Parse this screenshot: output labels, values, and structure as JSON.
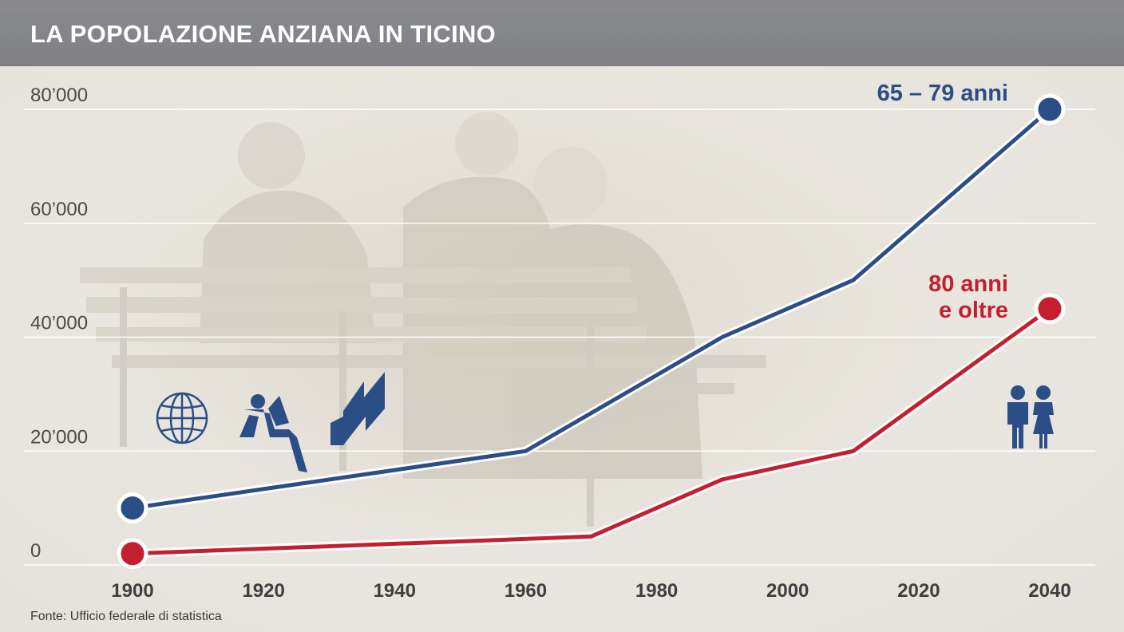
{
  "header": {
    "title": "LA POPOLAZIONE ANZIANA IN TICINO"
  },
  "source": "Fonte: Ufficio federale di statistica",
  "icons": [
    "globe-icon",
    "reading-person-icon",
    "checkmark-icon",
    "elderly-couple-icon"
  ],
  "chart_data": {
    "type": "line",
    "title": "LA POPOLAZIONE ANZIANA IN TICINO",
    "xlabel": "",
    "ylabel": "",
    "xlim": [
      1900,
      2040
    ],
    "ylim": [
      0,
      80000
    ],
    "x_ticks": [
      1900,
      1920,
      1940,
      1960,
      1980,
      2000,
      2020,
      2040
    ],
    "x_tick_labels": [
      "1900",
      "1920",
      "1940",
      "1960",
      "1980",
      "2000",
      "2020",
      "2040"
    ],
    "y_ticks": [
      0,
      20000,
      40000,
      60000,
      80000
    ],
    "y_tick_labels": [
      "0",
      "20’000",
      "40’000",
      "60’000",
      "80’000"
    ],
    "grid": true,
    "series": [
      {
        "name": "65 – 79 anni",
        "color": "#2c4e86",
        "x": [
          1900,
          1960,
          1990,
          2010,
          2040
        ],
        "y": [
          10000,
          20000,
          40000,
          50000,
          80000
        ]
      },
      {
        "name_lines": [
          "80 anni",
          "e oltre"
        ],
        "color": "#c41f2e",
        "x": [
          1900,
          1970,
          1990,
          2010,
          2040
        ],
        "y": [
          2000,
          5000,
          15000,
          20000,
          45000
        ]
      }
    ]
  }
}
